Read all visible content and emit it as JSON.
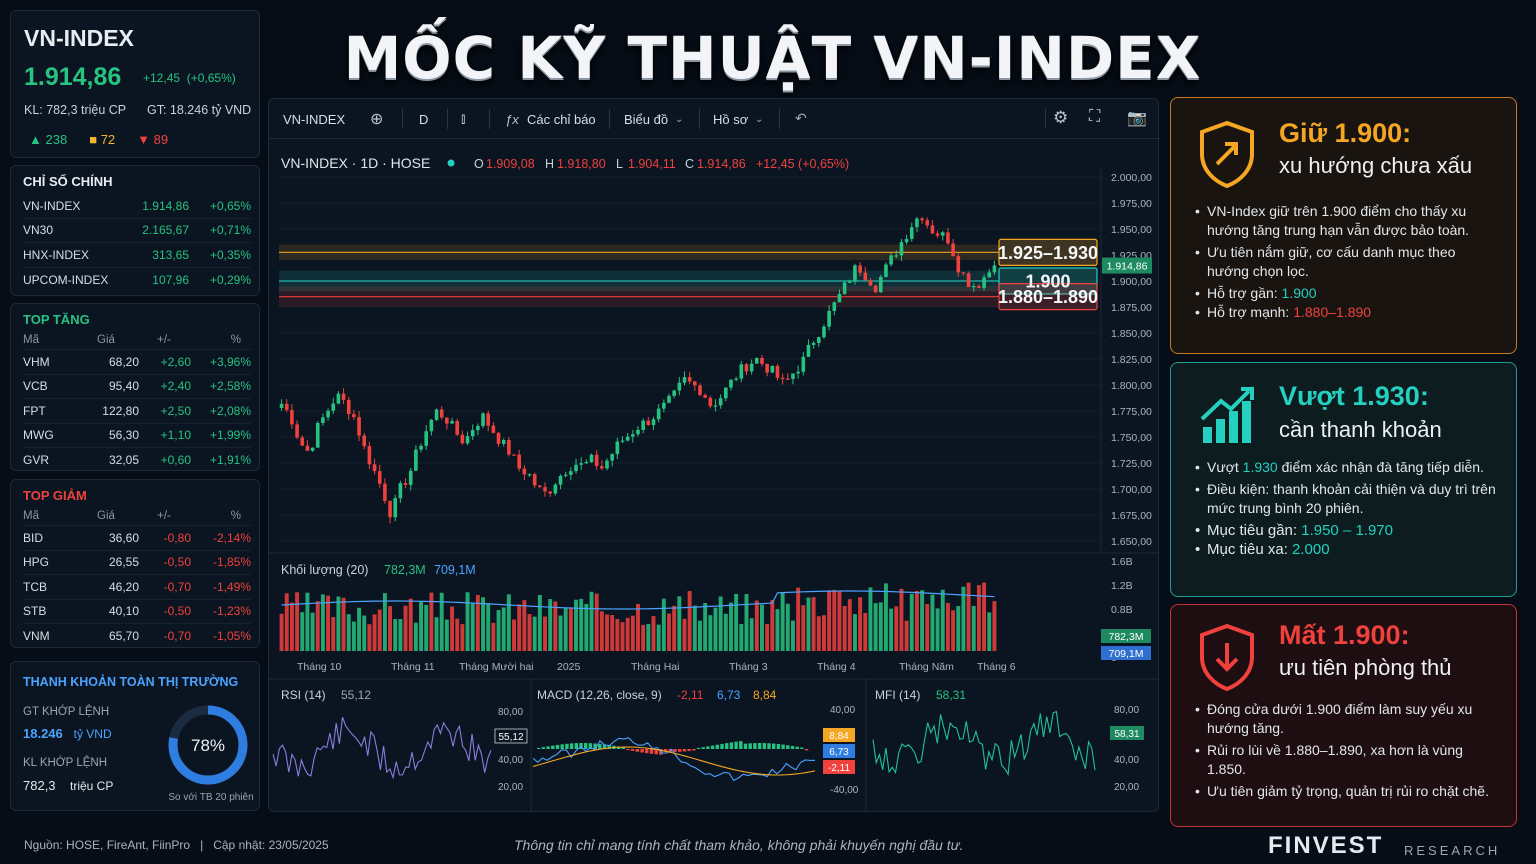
{
  "quote": {
    "symbol": "VN-INDEX",
    "price": "1.914,86",
    "change": "+12,45",
    "change_pct": "(+0,65%)",
    "volume": "KL: 782,3 triệu CP",
    "value": "GT: 18.246 tỷ VND",
    "advancers": "238",
    "unchanged": "72",
    "decliners": "89"
  },
  "indices": {
    "title": "CHỈ SỐ CHÍNH",
    "rows": [
      {
        "name": "VN-INDEX",
        "value": "1.914,86",
        "pct": "+0,65%"
      },
      {
        "name": "VN30",
        "value": "2.165,67",
        "pct": "+0,71%"
      },
      {
        "name": "HNX-INDEX",
        "value": "313,65",
        "pct": "+0,35%"
      },
      {
        "name": "UPCOM-INDEX",
        "value": "107,96",
        "pct": "+0,29%"
      }
    ]
  },
  "gainers": {
    "title": "TOP TĂNG",
    "headers": [
      "Mã",
      "Giá",
      "+/-",
      "%"
    ],
    "rows": [
      {
        "code": "VHM",
        "price": "68,20",
        "chg": "+2,60",
        "pct": "+3,96%"
      },
      {
        "code": "VCB",
        "price": "95,40",
        "chg": "+2,40",
        "pct": "+2,58%"
      },
      {
        "code": "FPT",
        "price": "122,80",
        "chg": "+2,50",
        "pct": "+2,08%"
      },
      {
        "code": "MWG",
        "price": "56,30",
        "chg": "+1,10",
        "pct": "+1,99%"
      },
      {
        "code": "GVR",
        "price": "32,05",
        "chg": "+0,60",
        "pct": "+1,91%"
      }
    ]
  },
  "losers": {
    "title": "TOP GIẢM",
    "headers": [
      "Mã",
      "Giá",
      "+/-",
      "%"
    ],
    "rows": [
      {
        "code": "BID",
        "price": "36,60",
        "chg": "-0,80",
        "pct": "-2,14%"
      },
      {
        "code": "HPG",
        "price": "26,55",
        "chg": "-0,50",
        "pct": "-1,85%"
      },
      {
        "code": "TCB",
        "price": "46,20",
        "chg": "-0,70",
        "pct": "-1,49%"
      },
      {
        "code": "STB",
        "price": "40,10",
        "chg": "-0,50",
        "pct": "-1,23%"
      },
      {
        "code": "VNM",
        "price": "65,70",
        "chg": "-0,70",
        "pct": "-1,05%"
      }
    ]
  },
  "liquidity": {
    "title": "THANH KHOẢN TOÀN THỊ TRƯỜNG",
    "gt_label": "GT KHỚP LỆNH",
    "gt_value": "18.246",
    "gt_unit": "tỷ VND",
    "kl_label": "KL KHỚP LỆNH",
    "kl_value": "782,3",
    "kl_unit": "triệu CP",
    "ratio": 0.78,
    "ratio_text": "78%",
    "ratio_caption": "So với TB 20 phiên"
  },
  "title": "MỐC KỸ THUẬT VN-INDEX",
  "toolbar": {
    "symbol": "VN-INDEX",
    "interval": "D",
    "indicators": "Các chỉ báo",
    "chart": "Biểu đồ",
    "profile": "Hồ sơ"
  },
  "legend": {
    "label": "VN-INDEX · 1D · HOSE",
    "o_key": "O",
    "o": "1.909,08",
    "h_key": "H",
    "h": "1.918,80",
    "l_key": "L",
    "l": "1.904,11",
    "c_key": "C",
    "c": "1.914,86",
    "chg": "+12,45 (+0,65%)"
  },
  "volume_legend": {
    "label": "Khối lượng (20)",
    "v1": "782,3M",
    "v2": "709,1M",
    "tag1": "782,3M",
    "tag2": "709,1M"
  },
  "rsi": {
    "label": "RSI (14)",
    "value": "55,12",
    "tag": "55,12"
  },
  "macd": {
    "label": "MACD (12,26, close, 9)",
    "v1": "-2,11",
    "v2": "6,73",
    "v3": "8,84"
  },
  "mfi": {
    "label": "MFI (14)",
    "value": "58,31",
    "tag": "58,31"
  },
  "chart_data": {
    "type": "candlestick",
    "y_ticks": [
      "2.000,00",
      "1.975,00",
      "1.950,00",
      "1.925,00",
      "1.900,00",
      "1.875,00",
      "1.850,00",
      "1.825,00",
      "1.800,00",
      "1.775,00",
      "1.750,00",
      "1.725,00",
      "1.700,00",
      "1.675,00",
      "1.650,00"
    ],
    "ylim": [
      1650,
      2000
    ],
    "last_price": 1914.86,
    "last_price_label": "1.914,86",
    "x_labels": [
      "Tháng 10",
      "Tháng 11",
      "Tháng Mười hai",
      "2025",
      "Tháng Hai",
      "Tháng 3",
      "Tháng 4",
      "Tháng Năm",
      "Tháng 6"
    ],
    "zones": [
      {
        "label": "1.925–1.930",
        "low": 1925,
        "high": 1930,
        "color": "#f5a623"
      },
      {
        "label": "1.900",
        "low": 1895,
        "high": 1905,
        "color": "#25d0c0"
      },
      {
        "label": "1.880–1.890",
        "low": 1880,
        "high": 1890,
        "color": "#f0413d"
      }
    ],
    "close_path": [
      1782,
      1770,
      1745,
      1735,
      1760,
      1775,
      1790,
      1782,
      1768,
      1740,
      1720,
      1700,
      1675,
      1700,
      1715,
      1740,
      1760,
      1775,
      1768,
      1755,
      1745,
      1760,
      1770,
      1758,
      1745,
      1735,
      1720,
      1715,
      1700,
      1695,
      1708,
      1718,
      1725,
      1722,
      1728,
      1720,
      1732,
      1745,
      1752,
      1760,
      1765,
      1772,
      1780,
      1790,
      1805,
      1800,
      1795,
      1780,
      1788,
      1800,
      1812,
      1820,
      1825,
      1818,
      1810,
      1800,
      1812,
      1822,
      1840,
      1855,
      1870,
      1885,
      1900,
      1915,
      1905,
      1895,
      1910,
      1925,
      1940,
      1955,
      1965,
      1950,
      1945,
      1940,
      1915,
      1900,
      1895,
      1905,
      1915
    ],
    "volume_y_ticks": [
      "1.6B",
      "1.2B",
      "0.8B",
      "0.4B",
      "0"
    ],
    "volume_ylim": [
      0,
      1.6
    ],
    "rsi_y_ticks": [
      "80,00",
      "40,00",
      "20,00"
    ],
    "macd_y_ticks": [
      "40,00",
      "-40,00"
    ],
    "mfi_y_ticks": [
      "80,00",
      "40,00",
      "20,00"
    ]
  },
  "cards": {
    "hold": {
      "h1": "Giữ 1.900:",
      "h2": "xu hướng chưa xấu",
      "b1": "VN-Index giữ trên 1.900 điểm cho thấy xu hướng tăng trung hạn vẫn được bảo toàn.",
      "b2": "Ưu tiên nắm giữ, cơ cấu danh mục theo hướng chọn lọc.",
      "b3_label": "Hỗ trợ gần:",
      "b3_value": "1.900",
      "b4_label": "Hỗ trợ mạnh:",
      "b4_value": "1.880–1.890"
    },
    "break": {
      "h1": "Vượt 1.930:",
      "h2": "cần thanh khoản",
      "b1_pre": "Vượt",
      "b1_value": "1.930",
      "b1_post": "điểm xác nhận đà tăng tiếp diễn.",
      "b2": "Điều kiện: thanh khoản cải thiện và duy trì trên mức trung bình 20 phiên.",
      "b3_label": "Mục tiêu gần:",
      "b3_value": "1.950 – 1.970",
      "b4_label": "Mục tiêu xa:",
      "b4_value": "2.000"
    },
    "lose": {
      "h1": "Mất 1.900:",
      "h2": "ưu tiên phòng thủ",
      "b1": "Đóng cửa dưới 1.900 điểm làm suy yếu xu hướng tăng.",
      "b2": "Rủi ro lùi về 1.880–1.890, xa hơn là vùng 1.850.",
      "b3": "Ưu tiên giảm tỷ trọng, quản trị rủi ro chặt chẽ."
    }
  },
  "footer": {
    "source": "Nguồn: HOSE, FireAnt, FiinPro",
    "divider": "|",
    "updated": "Cập nhật:  23/05/2025",
    "note": "Thông tin chỉ mang tính chất tham khảo, không phải khuyến nghị đầu tư.",
    "brand": "FINVEST",
    "brand_sub": "RESEARCH"
  },
  "colors": {
    "up": "#26c281",
    "down": "#f0413d",
    "orange": "#f5a623",
    "teal": "#25d0c0"
  }
}
